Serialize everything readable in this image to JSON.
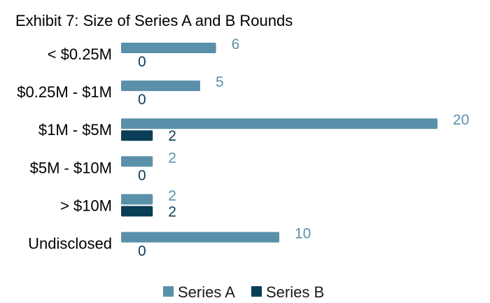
{
  "chart_data": {
    "type": "bar",
    "orientation": "horizontal",
    "title": "Exhibit 7: Size of Series A and B Rounds",
    "categories": [
      "< $0.25M",
      "$0.25M - $1M",
      "$1M - $5M",
      "$5M - $10M",
      "> $10M",
      "Undisclosed"
    ],
    "series": [
      {
        "name": "Series A",
        "values": [
          6,
          5,
          20,
          2,
          2,
          10
        ],
        "color": "#5b90aa"
      },
      {
        "name": "Series B",
        "values": [
          0,
          0,
          2,
          0,
          2,
          0
        ],
        "color": "#0b3e57"
      }
    ],
    "xlabel": "",
    "ylabel": "",
    "xlim": [
      0,
      20
    ],
    "grid": false,
    "legend": "bottom",
    "data_labels": true
  }
}
